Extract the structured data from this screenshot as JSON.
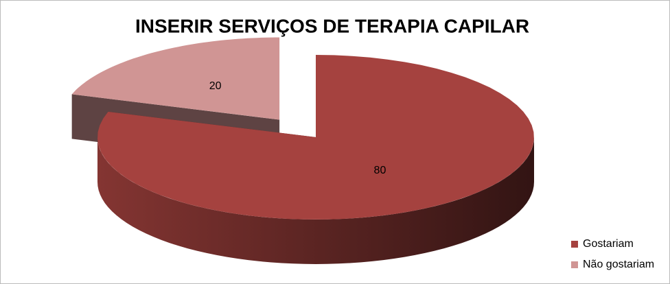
{
  "chart_data": {
    "type": "pie",
    "title": "INSERIR SERVIÇOS DE TERAPIA CAPILAR",
    "categories": [
      "Gostariam",
      "Não gostariam"
    ],
    "values": [
      80,
      20
    ],
    "colors": [
      "#a5423f",
      "#d09594"
    ],
    "legend": "right"
  }
}
